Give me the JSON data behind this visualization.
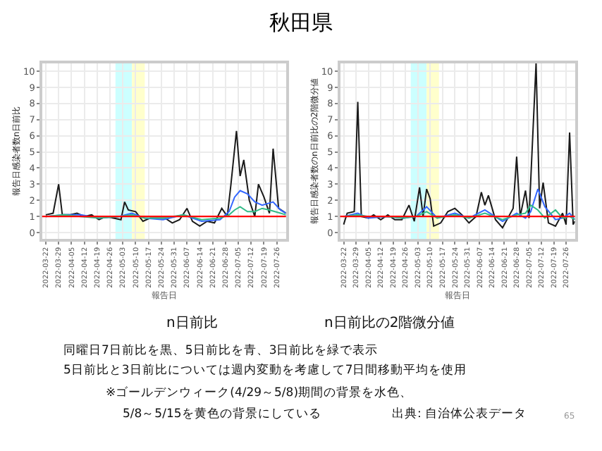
{
  "chart_data": [
    {
      "type": "line",
      "title": "秋田県",
      "subtitle": "n日前比",
      "xlabel": "報告日",
      "ylabel": "報告日感染者数n日前比",
      "xlim": [
        "2022-03-20",
        "2022-07-31"
      ],
      "ylim": [
        -0.4,
        10.5
      ],
      "yticks": [
        0,
        1,
        2,
        3,
        4,
        5,
        6,
        7,
        8,
        9,
        10
      ],
      "xticks": [
        "2022-03-22",
        "2022-03-29",
        "2022-04-05",
        "2022-04-12",
        "2022-04-19",
        "2022-04-26",
        "2022-05-03",
        "2022-05-10",
        "2022-05-17",
        "2022-05-24",
        "2022-05-31",
        "2022-06-07",
        "2022-06-14",
        "2022-06-21",
        "2022-06-28",
        "2022-07-05",
        "2022-07-12",
        "2022-07-19",
        "2022-07-26"
      ],
      "grid": true,
      "bands": [
        {
          "axis": "x",
          "from": "2022-04-29",
          "to": "2022-05-08",
          "color": "#ccffff"
        },
        {
          "axis": "x",
          "from": "2022-05-08",
          "to": "2022-05-15",
          "color": "#ffffcc"
        }
      ],
      "ref_lines": [
        {
          "axis": "y",
          "value": 1,
          "color": "#ff0000"
        }
      ],
      "series": [
        {
          "color": "#1a1a1a",
          "x": [
            "2022-03-22",
            "2022-03-26",
            "2022-03-29",
            "2022-03-31",
            "2022-04-04",
            "2022-04-08",
            "2022-04-12",
            "2022-04-16",
            "2022-04-20",
            "2022-04-24",
            "2022-04-28",
            "2022-05-02",
            "2022-05-04",
            "2022-05-06",
            "2022-05-10",
            "2022-05-14",
            "2022-05-18",
            "2022-05-22",
            "2022-05-26",
            "2022-05-30",
            "2022-06-03",
            "2022-06-07",
            "2022-06-10",
            "2022-06-14",
            "2022-06-18",
            "2022-06-22",
            "2022-06-26",
            "2022-06-29",
            "2022-07-01",
            "2022-07-04",
            "2022-07-06",
            "2022-07-08",
            "2022-07-11",
            "2022-07-14",
            "2022-07-16",
            "2022-07-19",
            "2022-07-22",
            "2022-07-24",
            "2022-07-27",
            "2022-07-31"
          ],
          "values": [
            1.1,
            1.2,
            3.0,
            1.1,
            1.1,
            1.2,
            1.0,
            1.1,
            0.8,
            1.0,
            0.9,
            0.8,
            1.9,
            1.4,
            1.3,
            0.7,
            0.9,
            0.9,
            0.9,
            0.6,
            0.8,
            1.5,
            0.7,
            0.4,
            0.7,
            0.6,
            1.5,
            1.0,
            3.0,
            6.3,
            3.5,
            4.5,
            2.0,
            1.0,
            3.0,
            2.2,
            1.2,
            5.2,
            1.5,
            1.2
          ]
        },
        {
          "color": "#3366ff",
          "x": [
            "2022-03-22",
            "2022-04-01",
            "2022-04-10",
            "2022-04-20",
            "2022-05-01",
            "2022-05-08",
            "2022-05-15",
            "2022-05-25",
            "2022-06-05",
            "2022-06-15",
            "2022-06-25",
            "2022-06-30",
            "2022-07-03",
            "2022-07-06",
            "2022-07-10",
            "2022-07-14",
            "2022-07-18",
            "2022-07-24",
            "2022-07-28",
            "2022-07-31"
          ],
          "values": [
            1.0,
            1.1,
            1.1,
            0.9,
            1.0,
            1.2,
            0.9,
            0.8,
            1.1,
            0.7,
            0.8,
            1.3,
            2.2,
            2.6,
            2.4,
            1.9,
            1.7,
            1.9,
            1.4,
            1.2
          ]
        },
        {
          "color": "#33bb88",
          "x": [
            "2022-03-22",
            "2022-04-01",
            "2022-04-10",
            "2022-04-20",
            "2022-05-01",
            "2022-05-08",
            "2022-05-15",
            "2022-05-25",
            "2022-06-05",
            "2022-06-15",
            "2022-06-25",
            "2022-06-30",
            "2022-07-03",
            "2022-07-06",
            "2022-07-10",
            "2022-07-14",
            "2022-07-18",
            "2022-07-22",
            "2022-07-28",
            "2022-07-31"
          ],
          "values": [
            1.0,
            1.1,
            1.0,
            0.9,
            1.0,
            1.1,
            0.9,
            0.9,
            1.1,
            0.8,
            0.9,
            1.1,
            1.4,
            1.6,
            1.3,
            1.3,
            1.5,
            1.4,
            1.2,
            1.1
          ]
        }
      ],
      "annotations": [
        "同曜日7日前比を黒、5日前比を青、3日前比を緑で表示",
        "5日前比と3日前比については週内変動を考慮して7日間移動平均を使用",
        "※ゴールデンウィーク(4/29～5/8)期間の背景を水色、",
        "5/8～5/15を黄色の背景にしている",
        "出典: 自治体公表データ",
        "65"
      ]
    },
    {
      "type": "line",
      "subtitle": "n日前比の2階微分値",
      "xlabel": "報告日",
      "ylabel": "報告日感染者数のn日前比の2階微分値",
      "xlim": [
        "2022-03-20",
        "2022-07-31"
      ],
      "ylim": [
        -0.4,
        10.5
      ],
      "yticks": [
        0,
        1,
        2,
        3,
        4,
        5,
        6,
        7,
        8,
        9,
        10
      ],
      "xticks": [
        "2022-03-22",
        "2022-03-29",
        "2022-04-05",
        "2022-04-12",
        "2022-04-19",
        "2022-04-26",
        "2022-05-03",
        "2022-05-10",
        "2022-05-17",
        "2022-05-24",
        "2022-05-31",
        "2022-06-07",
        "2022-06-14",
        "2022-06-21",
        "2022-06-28",
        "2022-07-05",
        "2022-07-12",
        "2022-07-19",
        "2022-07-26"
      ],
      "grid": true,
      "bands": [
        {
          "axis": "x",
          "from": "2022-04-29",
          "to": "2022-05-08",
          "color": "#ccffff"
        },
        {
          "axis": "x",
          "from": "2022-05-08",
          "to": "2022-05-15",
          "color": "#ffffcc"
        }
      ],
      "ref_lines": [
        {
          "axis": "y",
          "value": 1,
          "color": "#ff0000"
        }
      ],
      "series": [
        {
          "color": "#1a1a1a",
          "x": [
            "2022-03-22",
            "2022-03-24",
            "2022-03-28",
            "2022-03-30",
            "2022-04-01",
            "2022-04-05",
            "2022-04-08",
            "2022-04-12",
            "2022-04-16",
            "2022-04-20",
            "2022-04-24",
            "2022-04-28",
            "2022-05-01",
            "2022-05-04",
            "2022-05-06",
            "2022-05-08",
            "2022-05-10",
            "2022-05-12",
            "2022-05-16",
            "2022-05-20",
            "2022-05-24",
            "2022-05-28",
            "2022-06-01",
            "2022-06-05",
            "2022-06-08",
            "2022-06-10",
            "2022-06-12",
            "2022-06-16",
            "2022-06-20",
            "2022-06-24",
            "2022-06-26",
            "2022-06-28",
            "2022-06-30",
            "2022-07-03",
            "2022-07-05",
            "2022-07-09",
            "2022-07-11",
            "2022-07-13",
            "2022-07-16",
            "2022-07-20",
            "2022-07-24",
            "2022-07-26",
            "2022-07-28",
            "2022-07-30",
            "2022-07-31"
          ],
          "values": [
            0.5,
            1.2,
            1.3,
            8.1,
            1.0,
            0.9,
            1.1,
            0.8,
            1.1,
            0.8,
            0.8,
            1.7,
            0.7,
            2.8,
            1.0,
            2.7,
            2.1,
            0.4,
            0.6,
            1.3,
            1.5,
            1.1,
            0.6,
            1.0,
            2.5,
            1.7,
            2.3,
            0.8,
            0.3,
            1.1,
            1.5,
            4.7,
            1.0,
            2.6,
            0.9,
            10.5,
            1.5,
            3.1,
            0.6,
            0.4,
            1.2,
            0.5,
            6.2,
            0.5,
            0.7
          ]
        },
        {
          "color": "#3366ff",
          "x": [
            "2022-03-22",
            "2022-03-30",
            "2022-04-05",
            "2022-04-15",
            "2022-04-25",
            "2022-05-02",
            "2022-05-08",
            "2022-05-14",
            "2022-05-24",
            "2022-06-01",
            "2022-06-10",
            "2022-06-20",
            "2022-06-28",
            "2022-07-03",
            "2022-07-06",
            "2022-07-10",
            "2022-07-14",
            "2022-07-20",
            "2022-07-24",
            "2022-07-28",
            "2022-07-31"
          ],
          "values": [
            1.0,
            1.2,
            0.9,
            1.0,
            0.9,
            1.0,
            1.6,
            0.9,
            1.2,
            0.9,
            1.4,
            0.7,
            1.2,
            0.9,
            1.3,
            2.7,
            1.6,
            0.8,
            0.9,
            1.2,
            0.8
          ]
        },
        {
          "color": "#33bb88",
          "x": [
            "2022-03-22",
            "2022-03-30",
            "2022-04-05",
            "2022-04-15",
            "2022-04-25",
            "2022-05-02",
            "2022-05-08",
            "2022-05-14",
            "2022-05-24",
            "2022-06-01",
            "2022-06-10",
            "2022-06-20",
            "2022-06-28",
            "2022-07-03",
            "2022-07-06",
            "2022-07-10",
            "2022-07-14",
            "2022-07-20",
            "2022-07-24",
            "2022-07-28",
            "2022-07-31"
          ],
          "values": [
            1.0,
            1.1,
            1.0,
            1.0,
            0.9,
            1.0,
            1.3,
            0.9,
            1.1,
            0.9,
            1.2,
            0.8,
            1.1,
            1.2,
            1.7,
            1.4,
            0.9,
            1.4,
            0.9,
            1.0,
            0.8
          ]
        }
      ]
    }
  ]
}
